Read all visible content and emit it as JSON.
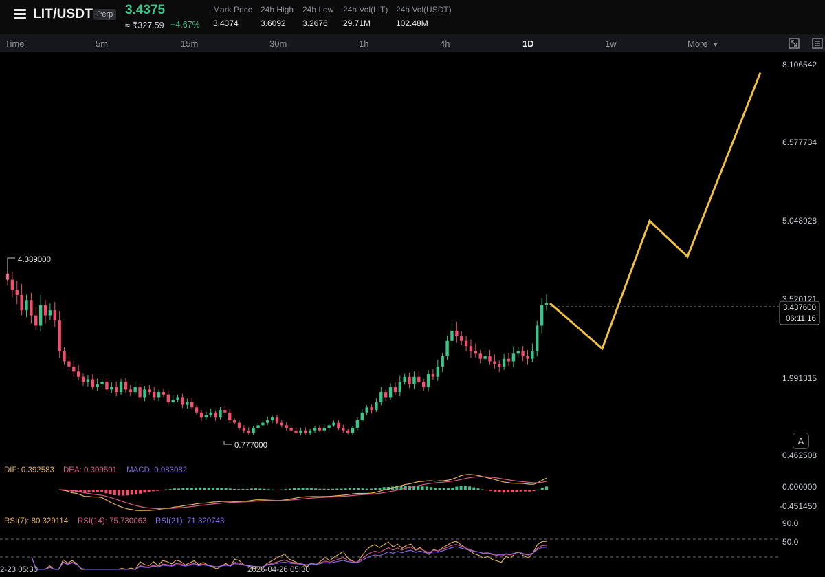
{
  "header": {
    "pair": "LIT/USDT",
    "badge": "Perp",
    "last_price": "3.4375",
    "inr_price": "≈ ₹327.59",
    "change_pct": "+4.67%",
    "stats": [
      {
        "label": "Mark Price",
        "value": "3.4374"
      },
      {
        "label": "24h High",
        "value": "3.6092"
      },
      {
        "label": "24h Low",
        "value": "3.2676"
      },
      {
        "label": "24h Vol(LIT)",
        "value": "29.71M"
      },
      {
        "label": "24h Vol(USDT)",
        "value": "102.48M"
      }
    ]
  },
  "timeframes": {
    "items": [
      "Time",
      "5m",
      "15m",
      "30m",
      "1h",
      "4h",
      "1D",
      "1w"
    ],
    "active": "1D",
    "more_label": "More"
  },
  "colors": {
    "up": "#3cc48a",
    "down": "#f0506e",
    "projection": "#f0c040",
    "dif": "#e8b45a",
    "dea": "#d65a8a",
    "macd_label": "#7c6cd6",
    "rsi7": "#e8b45a",
    "rsi14": "#d65a8a",
    "rsi21": "#8a6cf0"
  },
  "chart_data": {
    "type": "candlestick",
    "price_axis_ticks": [
      "8.106542",
      "6.577734",
      "5.048928",
      "3.520121",
      "1.991315",
      "0.462508"
    ],
    "current_price_tag": "3.437600",
    "countdown": "06:11:16",
    "high_marker": "4.389000",
    "low_marker": "0.777000",
    "close_series": [
      3.9,
      3.7,
      3.6,
      3.3,
      3.5,
      3.2,
      3.0,
      3.4,
      3.2,
      3.3,
      3.1,
      2.5,
      2.3,
      2.2,
      2.1,
      2.0,
      1.9,
      1.95,
      1.8,
      1.85,
      1.9,
      1.75,
      1.8,
      1.7,
      1.9,
      1.75,
      1.7,
      1.8,
      1.6,
      1.75,
      1.7,
      1.6,
      1.7,
      1.65,
      1.5,
      1.55,
      1.6,
      1.45,
      1.5,
      1.4,
      1.3,
      1.2,
      1.25,
      1.3,
      1.2,
      1.35,
      1.3,
      1.15,
      1.1,
      1.0,
      0.95,
      0.9,
      1.0,
      1.05,
      1.1,
      1.15,
      1.2,
      1.1,
      1.05,
      1.0,
      0.95,
      0.9,
      0.95,
      0.9,
      0.95,
      1.0,
      0.95,
      1.0,
      1.05,
      1.1,
      1.0,
      0.95,
      0.9,
      1.0,
      1.15,
      1.3,
      1.4,
      1.35,
      1.5,
      1.7,
      1.6,
      1.8,
      1.7,
      1.9,
      2.0,
      1.85,
      2.0,
      1.9,
      1.8,
      2.05,
      2.0,
      2.2,
      2.4,
      2.7,
      2.9,
      2.8,
      2.7,
      2.6,
      2.5,
      2.45,
      2.35,
      2.4,
      2.3,
      2.25,
      2.2,
      2.35,
      2.3,
      2.45,
      2.5,
      2.4,
      2.35,
      2.5,
      3.0,
      3.4,
      3.4376
    ],
    "projection_path": [
      3.437,
      2.55,
      5.05,
      4.35,
      7.95
    ],
    "macd": {
      "dif": "0.392583",
      "dea": "0.309501",
      "macd": "0.083082",
      "axis_ticks": [
        "0.000000",
        "-0.451450"
      ]
    },
    "rsi": {
      "rsi7": "80.329114",
      "rsi14": "75.730063",
      "rsi21": "71.320743",
      "axis_ticks": [
        "90.0",
        "50.0"
      ]
    },
    "time_axis_ticks": [
      "2-23 05:30",
      "2026-04-26 05:30"
    ]
  },
  "labels": {
    "dif_prefix": "DIF: ",
    "dea_prefix": "DEA: ",
    "macd_prefix": "MACD: ",
    "rsi7_prefix": "RSI(7): ",
    "rsi14_prefix": "RSI(14): ",
    "rsi21_prefix": "RSI(21): ",
    "auto_button": "A"
  },
  "icons": [
    "menu-icon",
    "chevron-down-icon",
    "expand-icon",
    "settings-icon"
  ]
}
